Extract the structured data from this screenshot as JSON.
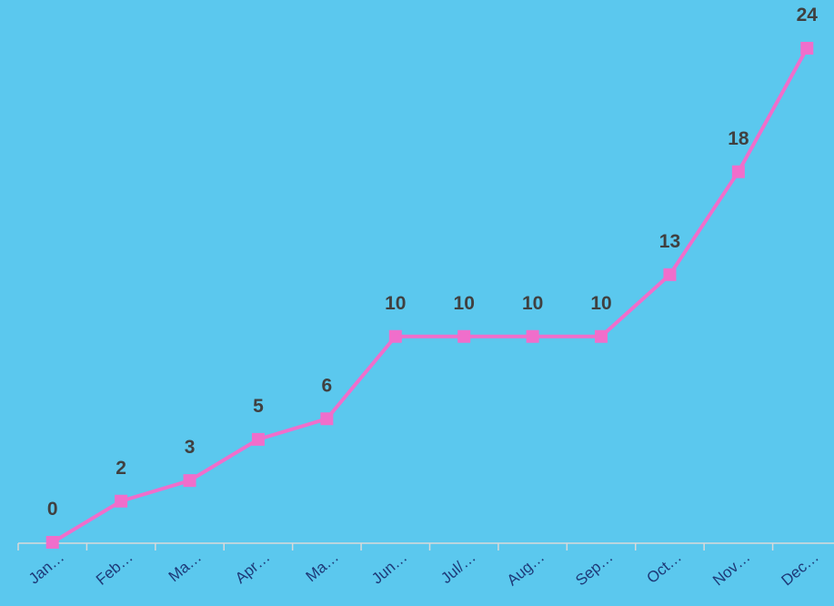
{
  "chart_data": {
    "type": "line",
    "categories": [
      "Jan…",
      "Feb…",
      "Ma…",
      "Apr…",
      "Ma…",
      "Jun…",
      "Jul/…",
      "Aug…",
      "Sep…",
      "Oct…",
      "Nov…",
      "Dec…"
    ],
    "values": [
      0,
      2,
      3,
      5,
      6,
      10,
      10,
      10,
      10,
      13,
      18,
      24
    ],
    "color": "#f06ecb"
  }
}
